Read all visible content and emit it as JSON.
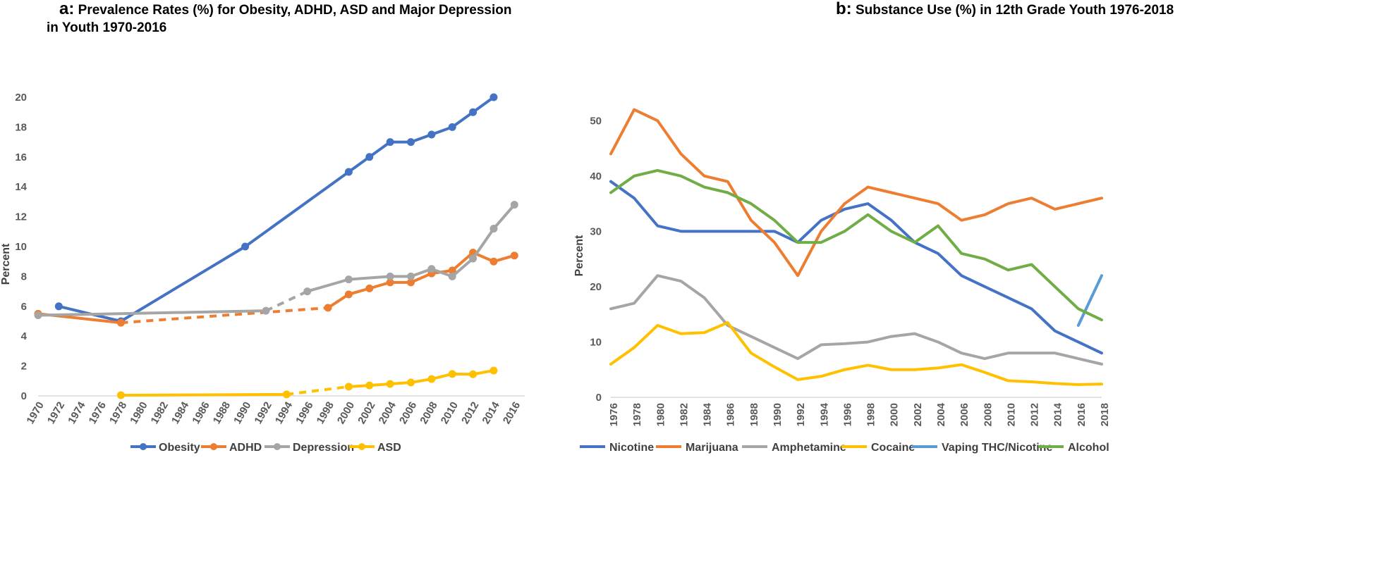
{
  "panels": {
    "a": {
      "letter": "a",
      "colon": ":",
      "title_line1": "Prevalence Rates (%) for Obesity, ADHD, ASD and Major Depression",
      "title_line2": "in Youth 1970-2016"
    },
    "b": {
      "letter": "b",
      "colon": ":",
      "title_line1": "Substance Use (%) in 12th Grade Youth 1976-2018"
    }
  },
  "chart_data": [
    {
      "type": "line",
      "title": "Prevalence Rates (%) for Obesity, ADHD, ASD and Major Depression in Youth 1970-2016",
      "xlabel": "",
      "ylabel": "Percent",
      "xlim": [
        1970,
        2017
      ],
      "ylim": [
        0,
        20
      ],
      "yticks": [
        0,
        2,
        4,
        6,
        8,
        10,
        12,
        14,
        16,
        18,
        20
      ],
      "xticks": [
        1970,
        1972,
        1974,
        1976,
        1978,
        1980,
        1982,
        1984,
        1986,
        1988,
        1990,
        1992,
        1994,
        1996,
        1998,
        2000,
        2002,
        2004,
        2006,
        2008,
        2010,
        2012,
        2014,
        2016
      ],
      "legend_position": "bottom",
      "series": [
        {
          "name": "Obesity",
          "color": "#4472C4",
          "segments": [
            {
              "style": "solid",
              "x": [
                1972,
                1978,
                1990,
                2000,
                2002,
                2004,
                2006,
                2008,
                2010,
                2012,
                2014
              ],
              "y": [
                6.0,
                5.0,
                10.0,
                15.0,
                16.0,
                17.0,
                17.0,
                17.5,
                18.0,
                19.0,
                20.0
              ]
            }
          ],
          "markers": {
            "x": [
              1972,
              1978,
              1990,
              2000,
              2002,
              2004,
              2006,
              2008,
              2010,
              2012,
              2014
            ],
            "y": [
              6.0,
              5.0,
              10.0,
              15.0,
              16.0,
              17.0,
              17.0,
              17.5,
              18.0,
              19.0,
              20.0
            ]
          }
        },
        {
          "name": "ADHD",
          "color": "#ED7D31",
          "segments": [
            {
              "style": "solid",
              "x": [
                1970,
                1978
              ],
              "y": [
                5.5,
                4.9
              ]
            },
            {
              "style": "dashed",
              "x": [
                1978,
                1998
              ],
              "y": [
                4.9,
                5.9
              ]
            },
            {
              "style": "solid",
              "x": [
                1998,
                2000,
                2002,
                2004,
                2006,
                2008,
                2010,
                2012,
                2014,
                2016
              ],
              "y": [
                5.9,
                6.8,
                7.2,
                7.6,
                7.6,
                8.2,
                8.4,
                9.6,
                9.0,
                9.4
              ]
            }
          ],
          "markers": {
            "x": [
              1970,
              1978,
              1998,
              2000,
              2002,
              2004,
              2006,
              2008,
              2010,
              2012,
              2014,
              2016
            ],
            "y": [
              5.5,
              4.9,
              5.9,
              6.8,
              7.2,
              7.6,
              7.6,
              8.2,
              8.4,
              9.6,
              9.0,
              9.4
            ]
          }
        },
        {
          "name": "Depression",
          "color": "#A5A5A5",
          "segments": [
            {
              "style": "solid",
              "x": [
                1970,
                1992
              ],
              "y": [
                5.4,
                5.7
              ]
            },
            {
              "style": "dashed",
              "x": [
                1992,
                1996
              ],
              "y": [
                5.7,
                7.0
              ]
            },
            {
              "style": "solid",
              "x": [
                1996,
                2000,
                2004,
                2006,
                2008,
                2010,
                2012,
                2014,
                2016
              ],
              "y": [
                7.0,
                7.8,
                8.0,
                8.0,
                8.5,
                8.0,
                9.2,
                11.2,
                12.8
              ]
            }
          ],
          "markers": {
            "x": [
              1970,
              1992,
              1996,
              2000,
              2004,
              2006,
              2008,
              2010,
              2012,
              2014,
              2016
            ],
            "y": [
              5.4,
              5.7,
              7.0,
              7.8,
              8.0,
              8.0,
              8.5,
              8.0,
              9.2,
              11.2,
              12.8
            ]
          }
        },
        {
          "name": "ASD",
          "color": "#FFC000",
          "segments": [
            {
              "style": "solid",
              "x": [
                1978,
                1994
              ],
              "y": [
                0.05,
                0.1
              ]
            },
            {
              "style": "dashed",
              "x": [
                1994,
                2000
              ],
              "y": [
                0.1,
                0.62
              ]
            },
            {
              "style": "solid",
              "x": [
                2000,
                2002,
                2004,
                2006,
                2008,
                2010,
                2012,
                2014
              ],
              "y": [
                0.62,
                0.7,
                0.8,
                0.9,
                1.13,
                1.47,
                1.45,
                1.7
              ]
            }
          ],
          "markers": {
            "x": [
              1978,
              1994,
              2000,
              2002,
              2004,
              2006,
              2008,
              2010,
              2012,
              2014
            ],
            "y": [
              0.05,
              0.1,
              0.62,
              0.7,
              0.8,
              0.9,
              1.13,
              1.47,
              1.45,
              1.7
            ]
          }
        }
      ]
    },
    {
      "type": "line",
      "title": "Substance Use (%) in 12th Grade Youth 1976-2018",
      "xlabel": "",
      "ylabel": "Percent",
      "xlim": [
        1976,
        2018
      ],
      "ylim": [
        0,
        55
      ],
      "yticks": [
        0,
        10,
        20,
        30,
        40,
        50
      ],
      "xticks": [
        1976,
        1978,
        1980,
        1982,
        1984,
        1986,
        1988,
        1990,
        1992,
        1994,
        1996,
        1998,
        2000,
        2002,
        2004,
        2006,
        2008,
        2010,
        2012,
        2014,
        2016,
        2018
      ],
      "legend_position": "bottom",
      "series": [
        {
          "name": "Nicotine",
          "color": "#4472C4",
          "x": [
            1976,
            1978,
            1980,
            1982,
            1984,
            1986,
            1988,
            1990,
            1992,
            1994,
            1996,
            1998,
            2000,
            2002,
            2004,
            2006,
            2008,
            2010,
            2012,
            2014,
            2016,
            2018
          ],
          "y": [
            39,
            36,
            31,
            30,
            30,
            30,
            30,
            30,
            28,
            32,
            34,
            35,
            32,
            28,
            26,
            22,
            20,
            18,
            16,
            12,
            10,
            8
          ]
        },
        {
          "name": "Marijuana",
          "color": "#ED7D31",
          "x": [
            1976,
            1978,
            1980,
            1982,
            1984,
            1986,
            1988,
            1990,
            1992,
            1994,
            1996,
            1998,
            2000,
            2002,
            2004,
            2006,
            2008,
            2010,
            2012,
            2014,
            2016,
            2018
          ],
          "y": [
            44,
            52,
            50,
            44,
            40,
            39,
            32,
            28,
            22,
            30,
            35,
            38,
            37,
            36,
            35,
            32,
            33,
            35,
            36,
            34,
            35,
            36
          ]
        },
        {
          "name": "Amphetamine",
          "color": "#A5A5A5",
          "x": [
            1976,
            1978,
            1980,
            1982,
            1984,
            1986,
            1988,
            1990,
            1992,
            1994,
            1996,
            1998,
            2000,
            2002,
            2004,
            2006,
            2008,
            2010,
            2012,
            2014,
            2016,
            2018
          ],
          "y": [
            16,
            17,
            22,
            21,
            18,
            13,
            11,
            9,
            7,
            9.5,
            9.7,
            10,
            11,
            11.5,
            10,
            8,
            7,
            8,
            8,
            8,
            7,
            6
          ]
        },
        {
          "name": "Cocaine",
          "color": "#FFC000",
          "x": [
            1976,
            1978,
            1980,
            1982,
            1984,
            1986,
            1988,
            1990,
            1992,
            1994,
            1996,
            1998,
            2000,
            2002,
            2004,
            2006,
            2008,
            2010,
            2012,
            2014,
            2016,
            2018
          ],
          "y": [
            6,
            9,
            13,
            11.5,
            11.7,
            13.5,
            8,
            5.5,
            3.2,
            3.8,
            5,
            5.8,
            5,
            5,
            5.3,
            5.9,
            4.5,
            3,
            2.8,
            2.5,
            2.3,
            2.4
          ]
        },
        {
          "name": "Vaping THC/Nicotine",
          "color": "#5B9BD5",
          "x": [
            2016,
            2018
          ],
          "y": [
            13,
            22
          ]
        },
        {
          "name": "Alcohol",
          "color": "#70AD47",
          "x": [
            1976,
            1978,
            1980,
            1982,
            1984,
            1986,
            1988,
            1990,
            1992,
            1994,
            1996,
            1998,
            2000,
            2002,
            2004,
            2006,
            2008,
            2010,
            2012,
            2014,
            2016,
            2018
          ],
          "y": [
            37,
            40,
            41,
            40,
            38,
            37,
            35,
            32,
            28,
            28,
            30,
            33,
            30,
            28,
            31,
            26,
            25,
            23,
            24,
            20,
            16,
            14
          ]
        }
      ]
    }
  ]
}
